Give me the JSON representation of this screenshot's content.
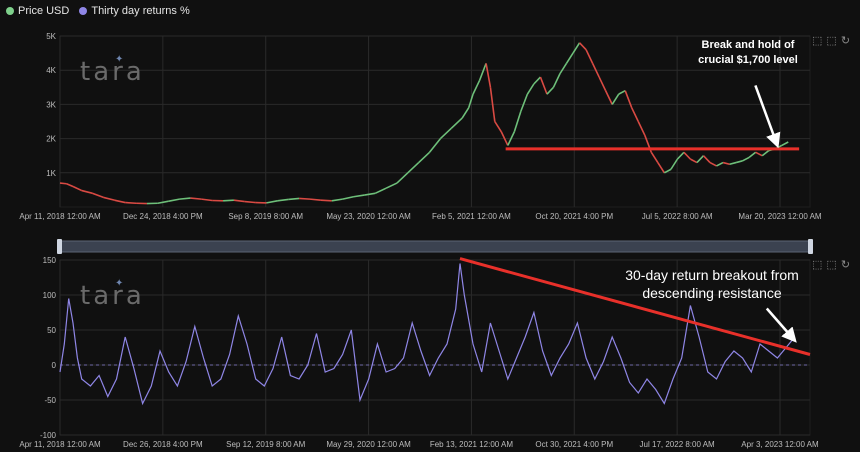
{
  "legend": [
    {
      "label": "Price USD",
      "color": "#7fd18c"
    },
    {
      "label": "Thirty day returns %",
      "color": "#8f86e6"
    }
  ],
  "watermark": "tara",
  "toolbar_icons": [
    "crop-icon",
    "restore-icon",
    "reset-icon"
  ],
  "colors": {
    "background": "#101010",
    "grid": "#2a2a2a",
    "price_up": "#6ec07a",
    "price_down": "#d94a43",
    "returns": "#8f86e6",
    "annotation": "#e8302a",
    "zero_line": "#6f6aa8",
    "navigator": "#3b4250"
  },
  "chart_data": [
    {
      "type": "line",
      "series": [
        {
          "name": "Price USD",
          "values": [
            [
              0,
              700
            ],
            [
              3,
              680
            ],
            [
              6,
              600
            ],
            [
              10,
              480
            ],
            [
              15,
              400
            ],
            [
              20,
              280
            ],
            [
              25,
              200
            ],
            [
              30,
              130
            ],
            [
              35,
              110
            ],
            [
              40,
              100
            ],
            [
              45,
              110
            ],
            [
              50,
              170
            ],
            [
              55,
              230
            ],
            [
              60,
              260
            ],
            [
              65,
              230
            ],
            [
              70,
              190
            ],
            [
              75,
              180
            ],
            [
              80,
              200
            ],
            [
              85,
              160
            ],
            [
              90,
              130
            ],
            [
              95,
              120
            ],
            [
              100,
              180
            ],
            [
              105,
              220
            ],
            [
              110,
              250
            ],
            [
              115,
              230
            ],
            [
              120,
              200
            ],
            [
              125,
              180
            ],
            [
              130,
              230
            ],
            [
              135,
              300
            ],
            [
              140,
              350
            ],
            [
              145,
              400
            ],
            [
              150,
              550
            ],
            [
              155,
              700
            ],
            [
              160,
              1000
            ],
            [
              165,
              1300
            ],
            [
              170,
              1600
            ],
            [
              175,
              2000
            ],
            [
              180,
              2300
            ],
            [
              185,
              2600
            ],
            [
              188,
              2900
            ],
            [
              190,
              3300
            ],
            [
              193,
              3700
            ],
            [
              196,
              4200
            ],
            [
              198,
              3500
            ],
            [
              200,
              2500
            ],
            [
              203,
              2200
            ],
            [
              206,
              1800
            ],
            [
              209,
              2200
            ],
            [
              212,
              2800
            ],
            [
              215,
              3300
            ],
            [
              218,
              3600
            ],
            [
              221,
              3800
            ],
            [
              224,
              3300
            ],
            [
              227,
              3500
            ],
            [
              230,
              3900
            ],
            [
              233,
              4200
            ],
            [
              236,
              4500
            ],
            [
              239,
              4800
            ],
            [
              242,
              4600
            ],
            [
              245,
              4200
            ],
            [
              248,
              3800
            ],
            [
              251,
              3400
            ],
            [
              254,
              3000
            ],
            [
              257,
              3300
            ],
            [
              260,
              3400
            ],
            [
              263,
              2900
            ],
            [
              266,
              2500
            ],
            [
              269,
              2100
            ],
            [
              272,
              1600
            ],
            [
              275,
              1300
            ],
            [
              278,
              1000
            ],
            [
              281,
              1100
            ],
            [
              284,
              1400
            ],
            [
              287,
              1600
            ],
            [
              290,
              1400
            ],
            [
              293,
              1300
            ],
            [
              296,
              1500
            ],
            [
              299,
              1300
            ],
            [
              302,
              1200
            ],
            [
              305,
              1300
            ],
            [
              308,
              1250
            ],
            [
              311,
              1300
            ],
            [
              314,
              1350
            ],
            [
              317,
              1450
            ],
            [
              320,
              1600
            ],
            [
              323,
              1500
            ],
            [
              326,
              1650
            ],
            [
              329,
              1700
            ],
            [
              332,
              1800
            ],
            [
              335,
              1900
            ]
          ],
          "color": "#6ec07a"
        }
      ],
      "x_ticks": [
        "Apr 11, 2018 12:00 AM",
        "Dec 24, 2018 4:00 PM",
        "Sep 8, 2019 8:00 AM",
        "May 23, 2020 12:00 AM",
        "Feb 5, 2021 12:00 AM",
        "Oct 20, 2021 4:00 PM",
        "Jul 5, 2022 8:00 AM",
        "Mar 20, 2023 12:00 AM"
      ],
      "y_ticks": [
        "5K",
        "4K",
        "3K",
        "2K",
        "1K"
      ],
      "ylim": [
        0,
        5000
      ],
      "annotations": [
        {
          "type": "hline",
          "value": 1700,
          "x_from": 205,
          "x_to": 340,
          "color": "#e8302a"
        },
        {
          "type": "text",
          "text": "Break and hold of crucial $1,700 level",
          "lines": [
            "Break and hold of",
            "crucial $1,700 level"
          ]
        },
        {
          "type": "arrow",
          "target_x": 330,
          "target_y": 1800
        }
      ]
    },
    {
      "type": "line",
      "series": [
        {
          "name": "Thirty day returns %",
          "values": [
            [
              0,
              -10
            ],
            [
              2,
              30
            ],
            [
              4,
              95
            ],
            [
              6,
              60
            ],
            [
              8,
              10
            ],
            [
              10,
              -20
            ],
            [
              14,
              -30
            ],
            [
              18,
              -15
            ],
            [
              22,
              -45
            ],
            [
              26,
              -20
            ],
            [
              30,
              40
            ],
            [
              34,
              -5
            ],
            [
              38,
              -55
            ],
            [
              42,
              -30
            ],
            [
              46,
              20
            ],
            [
              50,
              -10
            ],
            [
              54,
              -30
            ],
            [
              58,
              5
            ],
            [
              62,
              55
            ],
            [
              66,
              10
            ],
            [
              70,
              -30
            ],
            [
              74,
              -20
            ],
            [
              78,
              15
            ],
            [
              82,
              70
            ],
            [
              86,
              30
            ],
            [
              90,
              -20
            ],
            [
              94,
              -30
            ],
            [
              98,
              -5
            ],
            [
              102,
              40
            ],
            [
              106,
              -15
            ],
            [
              110,
              -20
            ],
            [
              114,
              0
            ],
            [
              118,
              45
            ],
            [
              122,
              -10
            ],
            [
              126,
              -5
            ],
            [
              130,
              15
            ],
            [
              134,
              50
            ],
            [
              138,
              -50
            ],
            [
              142,
              -20
            ],
            [
              146,
              30
            ],
            [
              150,
              -10
            ],
            [
              154,
              -5
            ],
            [
              158,
              10
            ],
            [
              162,
              60
            ],
            [
              166,
              20
            ],
            [
              170,
              -15
            ],
            [
              174,
              10
            ],
            [
              178,
              30
            ],
            [
              182,
              80
            ],
            [
              184,
              145
            ],
            [
              186,
              100
            ],
            [
              190,
              30
            ],
            [
              194,
              -10
            ],
            [
              198,
              60
            ],
            [
              202,
              20
            ],
            [
              206,
              -20
            ],
            [
              210,
              10
            ],
            [
              214,
              40
            ],
            [
              218,
              75
            ],
            [
              222,
              20
            ],
            [
              226,
              -15
            ],
            [
              230,
              10
            ],
            [
              234,
              30
            ],
            [
              238,
              60
            ],
            [
              242,
              10
            ],
            [
              246,
              -20
            ],
            [
              250,
              5
            ],
            [
              254,
              40
            ],
            [
              258,
              10
            ],
            [
              262,
              -25
            ],
            [
              266,
              -40
            ],
            [
              270,
              -20
            ],
            [
              274,
              -35
            ],
            [
              278,
              -55
            ],
            [
              282,
              -20
            ],
            [
              286,
              10
            ],
            [
              290,
              85
            ],
            [
              294,
              40
            ],
            [
              298,
              -10
            ],
            [
              302,
              -20
            ],
            [
              306,
              5
            ],
            [
              310,
              20
            ],
            [
              314,
              10
            ],
            [
              318,
              -10
            ],
            [
              322,
              30
            ],
            [
              326,
              20
            ],
            [
              330,
              10
            ],
            [
              334,
              25
            ],
            [
              338,
              40
            ]
          ],
          "color": "#8f86e6"
        }
      ],
      "x_ticks": [
        "Apr 11, 2018 12:00 AM",
        "Dec 26, 2018 4:00 PM",
        "Sep 12, 2019 8:00 AM",
        "May 29, 2020 12:00 AM",
        "Feb 13, 2021 12:00 AM",
        "Oct 30, 2021 4:00 PM",
        "Jul 17, 2022 8:00 AM",
        "Apr 3, 2023 12:00 AM"
      ],
      "y_ticks": [
        "150",
        "100",
        "50",
        "0",
        "-50",
        "-100"
      ],
      "ylim": [
        -100,
        150
      ],
      "annotations": [
        {
          "type": "trendline",
          "from": [
            184,
            152
          ],
          "to": [
            345,
            15
          ],
          "color": "#e8302a"
        },
        {
          "type": "text",
          "text": "30-day return breakout from descending resistance",
          "lines": [
            "30-day return breakout from",
            "descending resistance"
          ]
        },
        {
          "type": "arrow",
          "target_x": 338,
          "target_y": 35
        }
      ]
    }
  ]
}
